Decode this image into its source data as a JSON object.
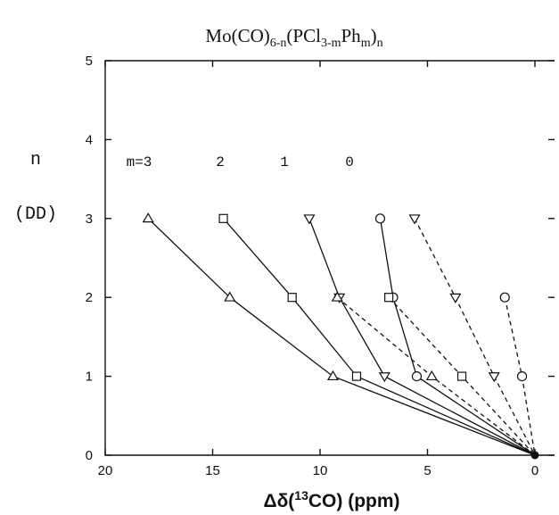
{
  "chart_data": {
    "type": "line",
    "title_parts": {
      "a": "Mo(CO)",
      "sub1": "6-n",
      "b": "(PCl",
      "sub2": "3-m",
      "c": "Ph",
      "sub3": "m",
      "d": ")",
      "sub4": "n"
    },
    "xlabel_parts": {
      "a": "Δδ(",
      "sup": "13",
      "b": "CO)  (ppm)"
    },
    "ylabel_line1": "n",
    "ylabel_line2": "(DD)",
    "xlim": [
      20,
      0
    ],
    "ylim": [
      0,
      5
    ],
    "x_ticks": [
      "20",
      "15",
      "10",
      "5",
      "0"
    ],
    "y_ticks": [
      "0",
      "1",
      "2",
      "3",
      "4",
      "5"
    ],
    "m_labels": [
      "m=3",
      "2",
      "1",
      "0"
    ],
    "series": [
      {
        "m": "3",
        "style": "solid",
        "marker": "triangle-up",
        "x": [
          18.0,
          14.2,
          9.4,
          0
        ],
        "y": [
          3,
          2,
          1,
          0
        ]
      },
      {
        "m": "2",
        "style": "solid",
        "marker": "square",
        "x": [
          14.5,
          11.3,
          8.3,
          0
        ],
        "y": [
          3,
          2,
          1,
          0
        ]
      },
      {
        "m": "1",
        "style": "solid",
        "marker": "triangle-down",
        "x": [
          10.5,
          9.1,
          7.0,
          0
        ],
        "y": [
          3,
          2,
          1,
          0
        ]
      },
      {
        "m": "0",
        "style": "solid",
        "marker": "circle",
        "x": [
          7.2,
          6.6,
          5.5,
          0
        ],
        "y": [
          3,
          2,
          1,
          0
        ]
      },
      {
        "m": "3",
        "style": "dashed",
        "marker": "triangle-up",
        "x": [
          9.2,
          4.8,
          0
        ],
        "y": [
          2,
          1,
          0
        ]
      },
      {
        "m": "2",
        "style": "dashed",
        "marker": "square",
        "x": [
          6.8,
          3.4,
          0
        ],
        "y": [
          2,
          1,
          0
        ]
      },
      {
        "m": "1",
        "style": "dashed",
        "marker": "triangle-down",
        "x": [
          5.6,
          3.7,
          1.9,
          0
        ],
        "y": [
          3,
          2,
          1,
          0
        ]
      },
      {
        "m": "0",
        "style": "dashed",
        "marker": "circle",
        "x": [
          1.4,
          0.6,
          0
        ],
        "y": [
          2,
          1,
          0
        ]
      }
    ]
  }
}
